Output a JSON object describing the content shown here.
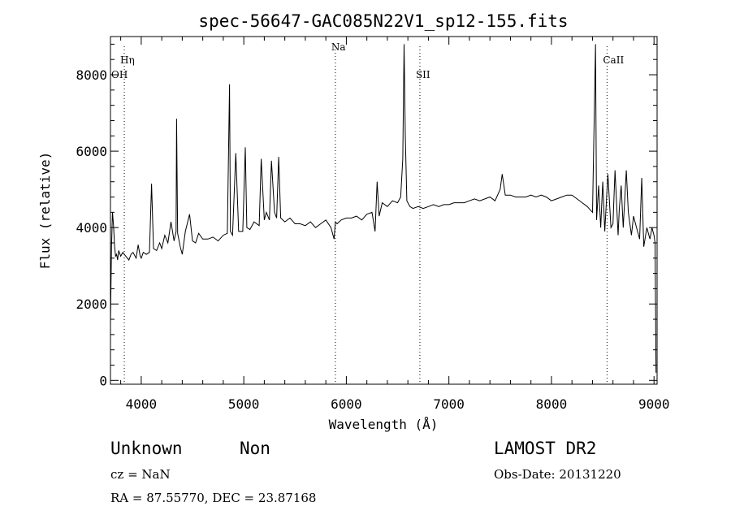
{
  "chart_data": {
    "type": "line",
    "title": "spec-56647-GAC085N22V1_sp12-155.fits",
    "xlabel": "Wavelength (Å)",
    "ylabel": "Flux (relative)",
    "xlim": [
      3700,
      9030
    ],
    "ylim": [
      -100,
      9000
    ],
    "xticks": [
      4000,
      5000,
      6000,
      7000,
      8000,
      9000
    ],
    "yticks": [
      0,
      2000,
      4000,
      6000,
      8000
    ],
    "grid": false,
    "line_markers": [
      {
        "label": "Hη",
        "x": 3835
      },
      {
        "label": "OH",
        "x": 3730
      },
      {
        "label": "Na",
        "x": 5893
      },
      {
        "label": "SII",
        "x": 6717
      },
      {
        "label": "CaII",
        "x": 8542
      }
    ],
    "series": [
      {
        "x": [
          3700,
          3710,
          3720,
          3730,
          3740,
          3750,
          3760,
          3770,
          3780,
          3800,
          3820,
          3850,
          3880,
          3900,
          3920,
          3950,
          3970,
          3990,
          4000,
          4020,
          4050,
          4080,
          4101,
          4120,
          4150,
          4180,
          4200,
          4230,
          4260,
          4290,
          4320,
          4340,
          4345,
          4355,
          4380,
          4400,
          4430,
          4471,
          4500,
          4530,
          4560,
          4600,
          4650,
          4700,
          4750,
          4800,
          4840,
          4861,
          4870,
          4890,
          4922,
          4950,
          4990,
          5015,
          5030,
          5060,
          5100,
          5150,
          5170,
          5200,
          5220,
          5250,
          5270,
          5300,
          5320,
          5340,
          5360,
          5400,
          5450,
          5500,
          5550,
          5600,
          5650,
          5700,
          5750,
          5800,
          5850,
          5880,
          5893,
          5910,
          5950,
          6000,
          6050,
          6100,
          6150,
          6200,
          6250,
          6280,
          6300,
          6320,
          6350,
          6400,
          6450,
          6500,
          6530,
          6550,
          6563,
          6575,
          6590,
          6620,
          6650,
          6700,
          6750,
          6800,
          6850,
          6900,
          6950,
          7000,
          7050,
          7100,
          7150,
          7200,
          7250,
          7300,
          7350,
          7400,
          7450,
          7500,
          7520,
          7550,
          7600,
          7650,
          7700,
          7750,
          7800,
          7850,
          7900,
          7950,
          8000,
          8050,
          8100,
          8150,
          8200,
          8250,
          8300,
          8350,
          8400,
          8430,
          8440,
          8460,
          8480,
          8500,
          8520,
          8550,
          8580,
          8600,
          8620,
          8650,
          8662,
          8680,
          8700,
          8730,
          8750,
          8780,
          8800,
          8830,
          8860,
          8880,
          8900,
          8930,
          8960,
          8980,
          9000,
          9010,
          9020
        ],
        "y": [
          1500,
          3500,
          4400,
          4050,
          3500,
          3250,
          3300,
          3150,
          3400,
          3250,
          3350,
          3250,
          3150,
          3300,
          3350,
          3200,
          3550,
          3250,
          3200,
          3350,
          3300,
          3350,
          5150,
          3450,
          3400,
          3600,
          3450,
          3800,
          3600,
          4150,
          3650,
          3900,
          6850,
          3850,
          3500,
          3300,
          3900,
          4350,
          3650,
          3600,
          3850,
          3700,
          3700,
          3750,
          3650,
          3800,
          3850,
          7750,
          3900,
          3800,
          5950,
          3900,
          3900,
          6100,
          4000,
          3950,
          4150,
          4050,
          5800,
          4200,
          4400,
          4200,
          5750,
          4400,
          4250,
          5850,
          4250,
          4150,
          4250,
          4100,
          4100,
          4050,
          4150,
          4000,
          4100,
          4200,
          4000,
          3700,
          4150,
          4100,
          4200,
          4250,
          4250,
          4300,
          4200,
          4350,
          4400,
          3900,
          5200,
          4300,
          4650,
          4550,
          4700,
          4650,
          4800,
          5800,
          8800,
          6400,
          4700,
          4550,
          4500,
          4550,
          4500,
          4550,
          4600,
          4550,
          4600,
          4600,
          4650,
          4650,
          4650,
          4700,
          4750,
          4700,
          4750,
          4800,
          4700,
          5000,
          5400,
          4850,
          4850,
          4800,
          4800,
          4800,
          4850,
          4800,
          4850,
          4800,
          4700,
          4750,
          4800,
          4850,
          4850,
          4750,
          4650,
          4550,
          4400,
          8800,
          4200,
          5100,
          4000,
          5200,
          3900,
          5400,
          4000,
          4100,
          5500,
          3800,
          4500,
          5100,
          4000,
          5500,
          4400,
          3800,
          4300,
          4000,
          3700,
          5300,
          3500,
          4000,
          3700,
          4000,
          3800,
          3600,
          200
        ]
      }
    ]
  },
  "footer": {
    "object_class": "Unknown",
    "subclass": "Non",
    "survey": "LAMOST DR2",
    "cz_text": "cz = NaN",
    "obs_date_text": "Obs-Date: 20131220",
    "coords_text": "RA =  87.55770, DEC =  23.87168"
  }
}
